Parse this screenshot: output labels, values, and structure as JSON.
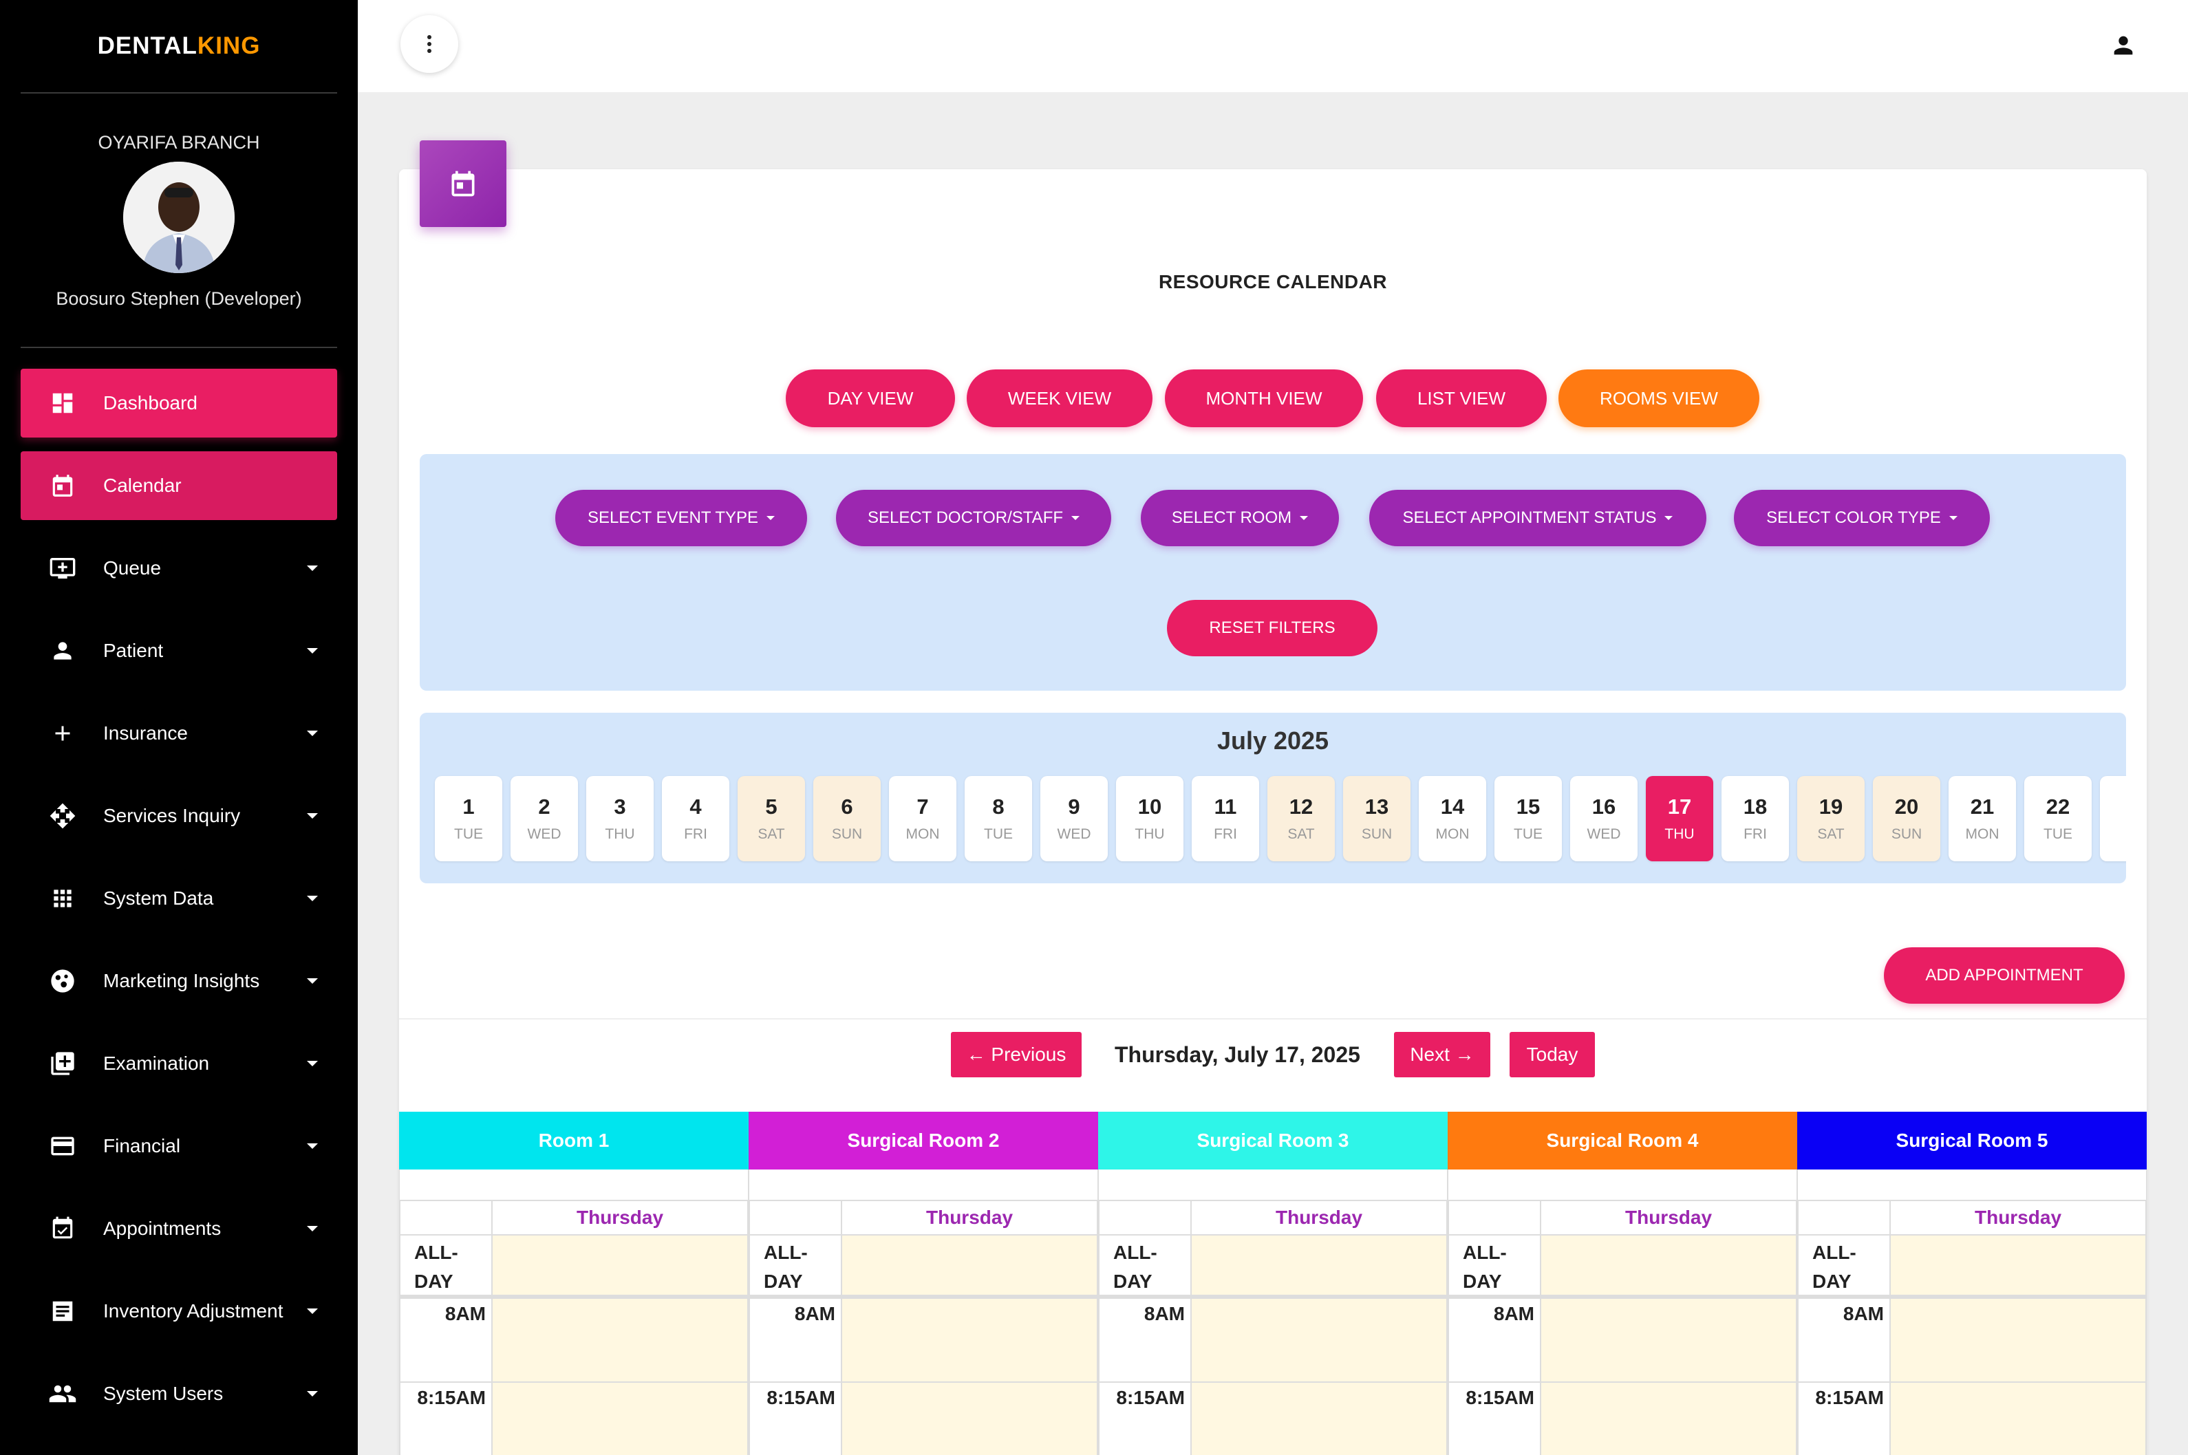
{
  "brand": {
    "part1": "DENTAL",
    "part2": "KING"
  },
  "sidebar": {
    "branch": "OYARIFA BRANCH",
    "user": "Boosuro Stephen (Developer)",
    "items": [
      {
        "label": "Dashboard",
        "icon": "dashboard-icon"
      },
      {
        "label": "Calendar",
        "icon": "calendar-icon"
      },
      {
        "label": "Queue",
        "icon": "queue-icon"
      },
      {
        "label": "Patient",
        "icon": "person-icon"
      },
      {
        "label": "Insurance",
        "icon": "plus-icon"
      },
      {
        "label": "Services Inquiry",
        "icon": "move-icon"
      },
      {
        "label": "System Data",
        "icon": "apps-icon"
      },
      {
        "label": "Marketing Insights",
        "icon": "bubble-chart-icon"
      },
      {
        "label": "Examination",
        "icon": "library-add-icon"
      },
      {
        "label": "Financial",
        "icon": "credit-card-icon"
      },
      {
        "label": "Appointments",
        "icon": "event-available-icon"
      },
      {
        "label": "Inventory Adjustment",
        "icon": "receipt-icon"
      },
      {
        "label": "System Users",
        "icon": "people-icon"
      }
    ]
  },
  "card": {
    "title": "RESOURCE CALENDAR"
  },
  "views": [
    "DAY VIEW",
    "WEEK VIEW",
    "MONTH VIEW",
    "LIST VIEW",
    "ROOMS VIEW"
  ],
  "filters": [
    "SELECT EVENT TYPE",
    "SELECT DOCTOR/STAFF",
    "SELECT ROOM",
    "SELECT APPOINTMENT STATUS",
    "SELECT COLOR TYPE"
  ],
  "reset_label": "RESET FILTERS",
  "month": "July 2025",
  "days": [
    {
      "n": "1",
      "d": "TUE"
    },
    {
      "n": "2",
      "d": "WED"
    },
    {
      "n": "3",
      "d": "THU"
    },
    {
      "n": "4",
      "d": "FRI"
    },
    {
      "n": "5",
      "d": "SAT"
    },
    {
      "n": "6",
      "d": "SUN"
    },
    {
      "n": "7",
      "d": "MON"
    },
    {
      "n": "8",
      "d": "TUE"
    },
    {
      "n": "9",
      "d": "WED"
    },
    {
      "n": "10",
      "d": "THU"
    },
    {
      "n": "11",
      "d": "FRI"
    },
    {
      "n": "12",
      "d": "SAT"
    },
    {
      "n": "13",
      "d": "SUN"
    },
    {
      "n": "14",
      "d": "MON"
    },
    {
      "n": "15",
      "d": "TUE"
    },
    {
      "n": "16",
      "d": "WED"
    },
    {
      "n": "17",
      "d": "THU"
    },
    {
      "n": "18",
      "d": "FRI"
    },
    {
      "n": "19",
      "d": "SAT"
    },
    {
      "n": "20",
      "d": "SUN"
    },
    {
      "n": "21",
      "d": "MON"
    },
    {
      "n": "22",
      "d": "TUE"
    }
  ],
  "add_label": "ADD APPOINTMENT",
  "nav": {
    "prev": "← Previous",
    "date": "Thursday, July 17, 2025",
    "next": "Next →",
    "today": "Today"
  },
  "rooms": [
    {
      "name": "Room 1",
      "color": "#00e5ee"
    },
    {
      "name": "Surgical Room 2",
      "color": "#d21fd6"
    },
    {
      "name": "Surgical Room 3",
      "color": "#2ef5e8"
    },
    {
      "name": "Surgical Room 4",
      "color": "#ff7a0f"
    },
    {
      "name": "Surgical Room 5",
      "color": "#0a00f5"
    }
  ],
  "grid": {
    "day_header": "Thursday",
    "allday_1": "ALL-",
    "allday_2": "DAY",
    "times": [
      "8AM",
      "8:15AM"
    ]
  },
  "colors": {
    "accent": "#e91e63",
    "purple": "#9c27b0",
    "orange": "#ff7a12"
  }
}
